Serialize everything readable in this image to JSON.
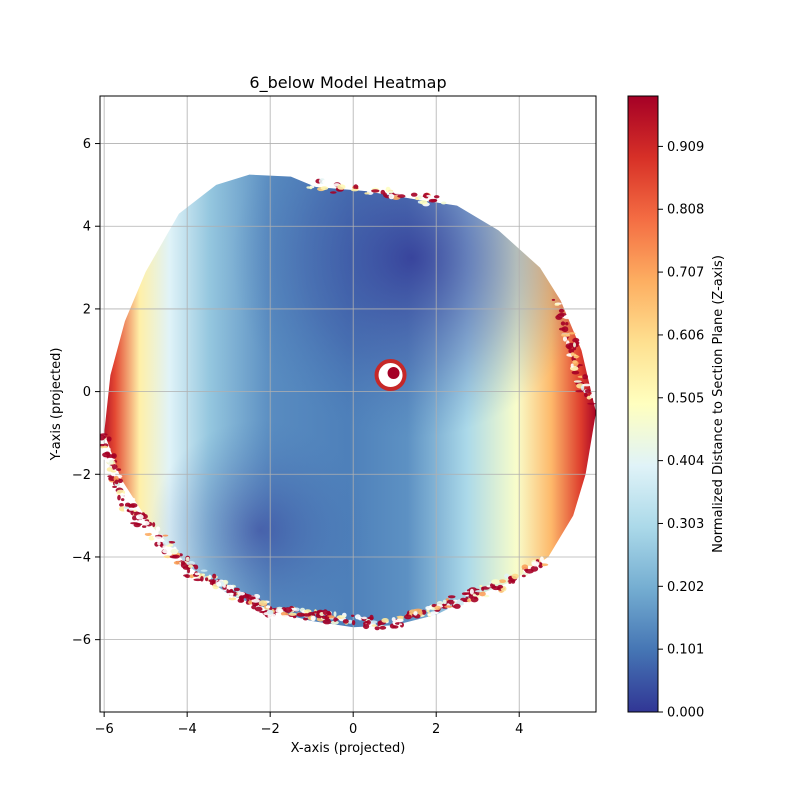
{
  "chart_data": {
    "type": "heatmap",
    "title": "6_below Model Heatmap",
    "xlabel": "X-axis (projected)",
    "ylabel": "Y-axis (projected)",
    "xlim": [
      -6.1,
      5.85
    ],
    "ylim": [
      -7.75,
      7.15
    ],
    "x_ticks": [
      -6,
      -4,
      -2,
      0,
      2,
      4
    ],
    "y_ticks": [
      -6,
      -4,
      -2,
      0,
      2,
      4,
      6
    ],
    "x_tick_labels": [
      "−6",
      "−4",
      "−2",
      "0",
      "2",
      "4"
    ],
    "y_tick_labels": [
      "−6",
      "−4",
      "−2",
      "0",
      "2",
      "4",
      "6"
    ],
    "grid": true,
    "colormap": "RdYlBu_r",
    "colorbar": {
      "label": "Normalized Distance to Section Plane (Z-axis)",
      "range": [
        0.0,
        0.99
      ],
      "ticks": [
        0.0,
        0.101,
        0.202,
        0.303,
        0.404,
        0.505,
        0.606,
        0.707,
        0.808,
        0.909
      ],
      "tick_labels": [
        "0.000",
        "0.101",
        "0.202",
        "0.303",
        "0.404",
        "0.505",
        "0.606",
        "0.707",
        "0.808",
        "0.909"
      ],
      "colors": [
        "#313695",
        "#4575b4",
        "#74add1",
        "#abd9e9",
        "#e0f3f8",
        "#ffffbf",
        "#fee090",
        "#fdae61",
        "#f46d43",
        "#d73027",
        "#a50026"
      ]
    },
    "region_outline": [
      [
        -6.0,
        -1.0
      ],
      [
        -5.85,
        0.4
      ],
      [
        -5.5,
        1.7
      ],
      [
        -5.0,
        2.9
      ],
      [
        -4.2,
        4.3
      ],
      [
        -3.3,
        5.0
      ],
      [
        -2.5,
        5.25
      ],
      [
        -1.5,
        5.2
      ],
      [
        -0.9,
        4.95
      ],
      [
        0.3,
        4.85
      ],
      [
        1.5,
        4.65
      ],
      [
        2.5,
        4.5
      ],
      [
        3.5,
        3.9
      ],
      [
        4.5,
        3.0
      ],
      [
        5.0,
        2.2
      ],
      [
        5.5,
        1.0
      ],
      [
        5.85,
        -0.5
      ],
      [
        5.6,
        -2.0
      ],
      [
        5.3,
        -3.0
      ],
      [
        4.7,
        -4.0
      ],
      [
        3.8,
        -4.6
      ],
      [
        2.8,
        -5.0
      ],
      [
        2.0,
        -5.4
      ],
      [
        1.0,
        -5.65
      ],
      [
        0.0,
        -5.7
      ],
      [
        -1.0,
        -5.55
      ],
      [
        -2.0,
        -5.3
      ],
      [
        -3.0,
        -4.9
      ],
      [
        -4.0,
        -4.2
      ],
      [
        -4.9,
        -3.2
      ],
      [
        -5.6,
        -2.1
      ]
    ],
    "field_model": {
      "description": "low values in center-top-right, rising toward left and right edges",
      "low_center": [
        1.5,
        3.1
      ],
      "hole_center": [
        0.9,
        0.4
      ]
    }
  }
}
